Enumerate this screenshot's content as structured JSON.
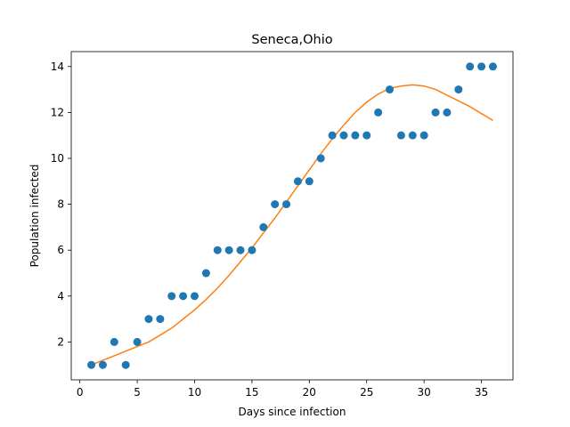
{
  "chart_data": {
    "type": "scatter",
    "title": "Seneca,Ohio",
    "xlabel": "Days since infection",
    "ylabel": "Population infected",
    "xlim": [
      -0.75,
      37.75
    ],
    "ylim": [
      0.35,
      14.65
    ],
    "xticks": [
      0,
      5,
      10,
      15,
      20,
      25,
      30,
      35
    ],
    "yticks": [
      2,
      4,
      6,
      8,
      10,
      12,
      14
    ],
    "grid": false,
    "series": [
      {
        "kind": "scatter",
        "color": "#1f77b4",
        "x": [
          1,
          2,
          3,
          4,
          5,
          6,
          7,
          8,
          9,
          10,
          11,
          12,
          13,
          14,
          15,
          16,
          17,
          18,
          19,
          20,
          21,
          22,
          23,
          24,
          25,
          26,
          27,
          28,
          29,
          30,
          31,
          32,
          33,
          34,
          35,
          36
        ],
        "y": [
          1,
          1,
          2,
          1,
          2,
          3,
          3,
          4,
          4,
          4,
          5,
          6,
          6,
          6,
          6,
          7,
          8,
          8,
          9,
          9,
          10,
          11,
          11,
          11,
          11,
          12,
          13,
          11,
          11,
          11,
          12,
          12,
          13,
          14,
          14,
          14
        ]
      },
      {
        "kind": "line",
        "color": "#ff7f0e",
        "x": [
          1,
          2,
          3,
          4,
          5,
          6,
          7,
          8,
          9,
          10,
          11,
          12,
          13,
          14,
          15,
          16,
          17,
          18,
          19,
          20,
          21,
          22,
          23,
          24,
          25,
          26,
          27,
          28,
          29,
          30,
          31,
          32,
          33,
          34,
          35,
          36
        ],
        "y": [
          1.0,
          1.2,
          1.4,
          1.6,
          1.8,
          2.0,
          2.3,
          2.6,
          3.0,
          3.4,
          3.85,
          4.35,
          4.9,
          5.5,
          6.1,
          6.75,
          7.4,
          8.1,
          8.8,
          9.5,
          10.2,
          10.85,
          11.45,
          12.0,
          12.45,
          12.8,
          13.05,
          13.15,
          13.2,
          13.15,
          13.0,
          12.75,
          12.5,
          12.25,
          11.95,
          11.65
        ]
      }
    ]
  }
}
